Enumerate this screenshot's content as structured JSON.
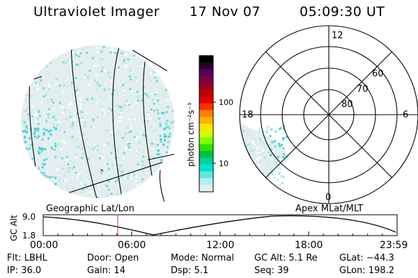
{
  "header": {
    "instrument": "Ultraviolet Imager",
    "date": "17 Nov 07",
    "time": "05:09:30 UT"
  },
  "colorbar": {
    "label": "photon cm⁻²s⁻¹",
    "ticks": [
      "100",
      "10"
    ],
    "colors": [
      "#000000",
      "#2b0030",
      "#55005a",
      "#7a004a",
      "#9a0020",
      "#c00000",
      "#e00000",
      "#ff3000",
      "#ff8000",
      "#ffb000",
      "#ffe000",
      "#d0ff00",
      "#80ff00",
      "#30e000",
      "#00c040",
      "#00d0a0",
      "#00e0d0",
      "#60e8e0",
      "#b0f0f0",
      "#e0f0f0"
    ]
  },
  "left_panel": {
    "label": "Geographic Lat/Lon"
  },
  "right_panel": {
    "label": "Apex MLat/MLT",
    "mlt_labels": [
      "12",
      "18",
      "6",
      "0"
    ],
    "mlat_labels": [
      "60",
      "70",
      "80"
    ]
  },
  "altitude_plot": {
    "ylabel": "GC Alt",
    "yticks": [
      "9.0",
      "1.8"
    ],
    "xticks": [
      "00:00",
      "06:00",
      "12:00",
      "18:00",
      "23:59"
    ]
  },
  "info": {
    "row1": [
      {
        "key": "Flt:",
        "value": "LBHL"
      },
      {
        "key": "Door:",
        "value": "Open"
      },
      {
        "key": "Mode:",
        "value": "Normal"
      },
      {
        "key": "GC Alt:",
        "value": "5.1 Re"
      },
      {
        "key": "GLat:",
        "value": "−44.3"
      }
    ],
    "row2": [
      {
        "key": "IP:",
        "value": "36.0"
      },
      {
        "key": "Gain:",
        "value": "14"
      },
      {
        "key": "Dsp:",
        "value": "5.1"
      },
      {
        "key": "Seq:",
        "value": "39"
      },
      {
        "key": "GLon:",
        "value": "198.2"
      }
    ]
  }
}
